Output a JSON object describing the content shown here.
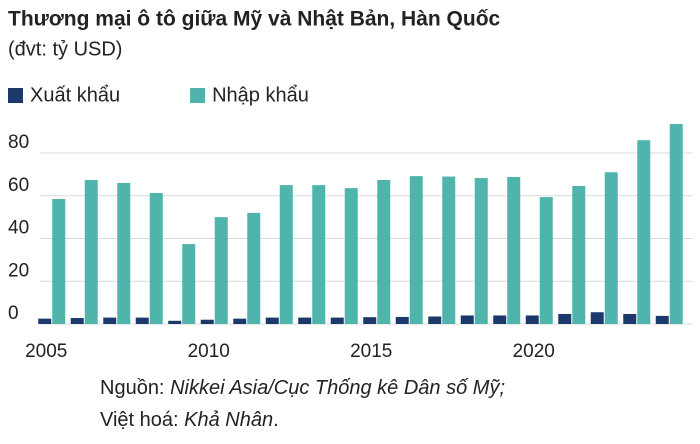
{
  "chart_data": {
    "type": "bar",
    "title": "Thương mại ô tô giữa Mỹ và Nhật Bản, Hàn Quốc",
    "subtitle": "(đvt: tỷ USD)",
    "x": [
      2005,
      2006,
      2007,
      2008,
      2009,
      2010,
      2011,
      2012,
      2013,
      2014,
      2015,
      2016,
      2017,
      2018,
      2019,
      2020,
      2021,
      2022,
      2023,
      2024
    ],
    "xlim": [
      2004.5,
      2024.5
    ],
    "xticks": [
      2005,
      2010,
      2015,
      2020
    ],
    "series": [
      {
        "name": "Xuất khẩu",
        "color": "#1b3a6b",
        "values": [
          2.5,
          2.8,
          3,
          3,
          1.5,
          2,
          2.5,
          3,
          3,
          3,
          3.2,
          3.3,
          3.5,
          4,
          4,
          4,
          4.7,
          5.5,
          4.7,
          3.8
        ]
      },
      {
        "name": "Nhập khẩu",
        "color": "#4fb5ac",
        "values": [
          58.5,
          67.4,
          66,
          61.3,
          37.4,
          50,
          52,
          65,
          65,
          63.6,
          67.4,
          69.2,
          69,
          68.3,
          68.8,
          59.4,
          64.6,
          71,
          86,
          93.6
        ]
      }
    ],
    "ylim": [
      0,
      95
    ],
    "yticks": [
      0,
      20,
      40,
      60,
      80
    ],
    "grid": true,
    "legend": "top-left",
    "source": {
      "label": "Nguồn:",
      "text": "Nikkei Asia/Cục Thống kê Dân số Mỹ;"
    },
    "credit": {
      "label": "Việt hoá:",
      "text": "Khả Nhân",
      "end": "."
    }
  }
}
